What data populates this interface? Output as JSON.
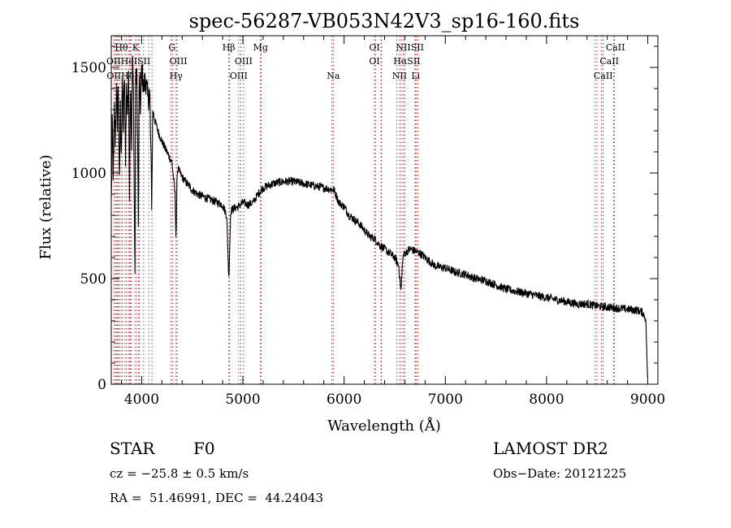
{
  "chart_data": {
    "type": "line",
    "title": "spec-56287-VB053N42V3_sp16-160.fits",
    "xlabel": "Wavelength (Å)",
    "ylabel": "Flux (relative)",
    "xlim": [
      3700,
      9100
    ],
    "ylim": [
      0,
      1650
    ],
    "xticks": [
      4000,
      5000,
      6000,
      7000,
      8000,
      9000
    ],
    "yticks": [
      0,
      500,
      1000,
      1500
    ],
    "grid": false,
    "series": [
      {
        "x": [
          3700,
          3710,
          3720,
          3730,
          3740,
          3750,
          3760,
          3770,
          3780,
          3790,
          3800,
          3810,
          3820,
          3830,
          3840,
          3850,
          3860,
          3870,
          3880,
          3890,
          3900,
          3910,
          3920,
          3930,
          3935,
          3940,
          3950,
          3960,
          3968,
          3975,
          3990,
          4000,
          4020,
          4040,
          4060,
          4080,
          4100,
          4110,
          4130,
          4160,
          4200,
          4250,
          4300,
          4330,
          4340,
          4350,
          4360,
          4400,
          4450,
          4500,
          4550,
          4600,
          4650,
          4700,
          4750,
          4800,
          4840,
          4861,
          4880,
          4900,
          4950,
          5000,
          5050,
          5100,
          5150,
          5200,
          5300,
          5400,
          5500,
          5600,
          5700,
          5800,
          5900,
          5950,
          6000,
          6050,
          6100,
          6150,
          6200,
          6250,
          6300,
          6350,
          6400,
          6450,
          6500,
          6540,
          6563,
          6580,
          6600,
          6650,
          6700,
          6750,
          6800,
          6850,
          6900,
          7000,
          7100,
          7200,
          7300,
          7400,
          7500,
          7600,
          7700,
          7800,
          7900,
          8000,
          8100,
          8200,
          8300,
          8400,
          8500,
          8600,
          8700,
          8800,
          8900,
          8950,
          8980,
          9000
        ],
        "y": [
          850,
          1250,
          950,
          1300,
          1150,
          1400,
          1250,
          1450,
          900,
          1300,
          1100,
          1450,
          1200,
          1500,
          1050,
          1400,
          1300,
          1480,
          900,
          1500,
          1100,
          1550,
          1350,
          700,
          450,
          1400,
          1500,
          1200,
          700,
          1450,
          1300,
          1500,
          1400,
          1450,
          1350,
          1380,
          850,
          1300,
          1250,
          1200,
          1150,
          1100,
          1050,
          900,
          680,
          1000,
          1020,
          980,
          950,
          920,
          900,
          890,
          880,
          870,
          860,
          850,
          800,
          500,
          820,
          830,
          840,
          860,
          850,
          860,
          900,
          930,
          950,
          960,
          960,
          950,
          940,
          930,
          920,
          860,
          840,
          800,
          780,
          760,
          730,
          700,
          690,
          660,
          640,
          620,
          600,
          560,
          440,
          600,
          620,
          640,
          630,
          620,
          600,
          580,
          560,
          550,
          530,
          520,
          500,
          490,
          470,
          450,
          440,
          430,
          420,
          410,
          400,
          390,
          380,
          380,
          370,
          365,
          360,
          355,
          350,
          340,
          310,
          0
        ],
        "noise": 40
      }
    ],
    "line_markers": {
      "red": [
        3727,
        3750,
        3771,
        3798,
        3835,
        3869,
        3889,
        3934,
        3970,
        4102,
        4305,
        4340,
        4861,
        4959,
        5007,
        5173,
        5893,
        6300,
        6364,
        6548,
        6563,
        6584,
        6707,
        6717,
        6731,
        8498,
        8542,
        8662
      ],
      "black": [
        3740,
        3760,
        3780,
        3810,
        3850,
        3880,
        3900,
        3950,
        3980,
        4020,
        4070,
        4290,
        4350,
        4870,
        4980,
        5180,
        5880,
        6310,
        6370,
        6520,
        6600,
        6700,
        8480,
        8560,
        8670
      ]
    },
    "line_labels": [
      {
        "text": "Hθ",
        "x": 3800,
        "row": 1
      },
      {
        "text": "K",
        "x": 3940,
        "row": 1
      },
      {
        "text": "G",
        "x": 4300,
        "row": 1
      },
      {
        "text": "Hβ",
        "x": 4861,
        "row": 1
      },
      {
        "text": "Mg",
        "x": 5175,
        "row": 1
      },
      {
        "text": "OI",
        "x": 6300,
        "row": 1
      },
      {
        "text": "NIISII",
        "x": 6650,
        "row": 1
      },
      {
        "text": "CaII",
        "x": 8680,
        "row": 1
      },
      {
        "text": "OIIHeISII",
        "x": 3870,
        "row": 2
      },
      {
        "text": "OIII",
        "x": 4363,
        "row": 2
      },
      {
        "text": "OIII",
        "x": 5007,
        "row": 2
      },
      {
        "text": "OI",
        "x": 6300,
        "row": 2
      },
      {
        "text": "HαSII",
        "x": 6620,
        "row": 2
      },
      {
        "text": "CaII",
        "x": 8620,
        "row": 2
      },
      {
        "text": "OIIHδH",
        "x": 3830,
        "row": 3
      },
      {
        "text": "Hγ",
        "x": 4340,
        "row": 3
      },
      {
        "text": "OIII",
        "x": 4959,
        "row": 3
      },
      {
        "text": "Na",
        "x": 5893,
        "row": 3
      },
      {
        "text": "NII",
        "x": 6548,
        "row": 3
      },
      {
        "text": "Li",
        "x": 6707,
        "row": 3
      },
      {
        "text": "CaII",
        "x": 8560,
        "row": 3
      }
    ]
  },
  "info": {
    "class_label": "STAR",
    "subclass": "F0",
    "survey": "LAMOST DR2",
    "cz": "cz = −25.8 ± 0.5 km/s",
    "obs_date": "Obs−Date: 20121225",
    "coords": "RA =  51.46991, DEC =  44.24043"
  }
}
